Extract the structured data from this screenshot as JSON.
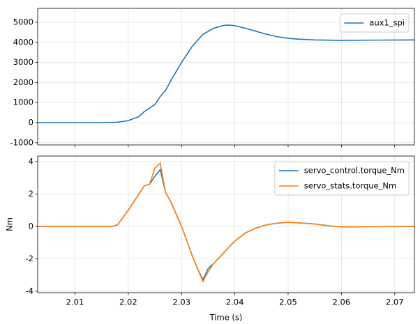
{
  "chart_data": [
    {
      "type": "line",
      "x": [
        2.003,
        2.015,
        2.018,
        2.02,
        2.022,
        2.023,
        2.025,
        2.026,
        2.027,
        2.028,
        2.03,
        2.032,
        2.034,
        2.036,
        2.038,
        2.039,
        2.04,
        2.042,
        2.044,
        2.046,
        2.048,
        2.05,
        2.052,
        2.055,
        2.06,
        2.065,
        2.0737
      ],
      "series": [
        {
          "name": "aux1_spi",
          "color": "#1f77b4",
          "values": [
            0,
            0,
            20,
            100,
            300,
            550,
            900,
            1300,
            1600,
            2100,
            3000,
            3800,
            4400,
            4700,
            4850,
            4860,
            4830,
            4700,
            4550,
            4400,
            4280,
            4200,
            4160,
            4120,
            4100,
            4110,
            4120
          ]
        }
      ],
      "xlim": [
        2.003,
        2.0737
      ],
      "ylim": [
        -1111,
        5694
      ],
      "yticks": [
        -1000,
        0,
        1000,
        2000,
        3000,
        4000,
        5000
      ],
      "grid": true,
      "legend": "upper right"
    },
    {
      "type": "line",
      "x": [
        2.003,
        2.01,
        2.017,
        2.018,
        2.02,
        2.022,
        2.023,
        2.024,
        2.025,
        2.026,
        2.027,
        2.028,
        2.03,
        2.032,
        2.033,
        2.034,
        2.035,
        2.036,
        2.038,
        2.04,
        2.042,
        2.044,
        2.046,
        2.048,
        2.05,
        2.052,
        2.055,
        2.058,
        2.06,
        2.065,
        2.0737
      ],
      "series": [
        {
          "name": "servo_control.torque_Nm",
          "color": "#1f77b4",
          "values": [
            0,
            0,
            0,
            0.1,
            1.0,
            2.0,
            2.5,
            2.6,
            3.1,
            3.5,
            2.1,
            1.5,
            0,
            -1.8,
            -2.6,
            -3.3,
            -2.6,
            -2.3,
            -1.6,
            -0.9,
            -0.4,
            -0.1,
            0.1,
            0.2,
            0.25,
            0.22,
            0.15,
            0.02,
            -0.03,
            -0.02,
            0
          ]
        },
        {
          "name": "servo_stats.torque_Nm",
          "color": "#ff7f0e",
          "values": [
            0,
            0,
            0,
            0.1,
            1.0,
            2.0,
            2.5,
            2.6,
            3.6,
            3.9,
            2.1,
            1.5,
            0,
            -1.8,
            -2.6,
            -3.4,
            -2.8,
            -2.3,
            -1.6,
            -0.9,
            -0.4,
            -0.1,
            0.1,
            0.2,
            0.25,
            0.22,
            0.15,
            0.02,
            -0.03,
            -0.02,
            0
          ]
        }
      ],
      "xlim": [
        2.003,
        2.0737
      ],
      "ylim": [
        -4.09,
        4.34
      ],
      "xticks": [
        2.01,
        2.02,
        2.03,
        2.04,
        2.05,
        2.06,
        2.07
      ],
      "yticks": [
        -4,
        -2,
        0,
        2,
        4
      ],
      "xlabel": "Time (s)",
      "ylabel": "Nm",
      "grid": true,
      "legend": "upper right"
    }
  ]
}
